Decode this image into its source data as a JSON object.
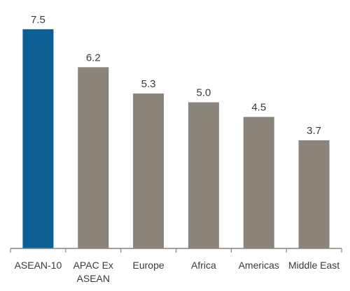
{
  "chart_data": {
    "type": "bar",
    "categories": [
      "ASEAN-10",
      "APAC Ex ASEAN",
      "Europe",
      "Africa",
      "Americas",
      "Middle East"
    ],
    "category_lines": [
      [
        "ASEAN-10"
      ],
      [
        "APAC Ex",
        "ASEAN"
      ],
      [
        "Europe"
      ],
      [
        "Africa"
      ],
      [
        "Americas"
      ],
      [
        "Middle East"
      ]
    ],
    "values": [
      7.5,
      6.2,
      5.3,
      5.0,
      4.5,
      3.7
    ],
    "value_labels": [
      "7.5",
      "6.2",
      "5.3",
      "5.0",
      "4.5",
      "3.7"
    ],
    "colors": [
      "#0e5f94",
      "#8b847a",
      "#8b847a",
      "#8b847a",
      "#8b847a",
      "#8b847a"
    ],
    "axis_color": "#8b847a",
    "title": "",
    "xlabel": "",
    "ylabel": "",
    "ylim": [
      0,
      8.5
    ],
    "grid": false,
    "legend": "none"
  }
}
